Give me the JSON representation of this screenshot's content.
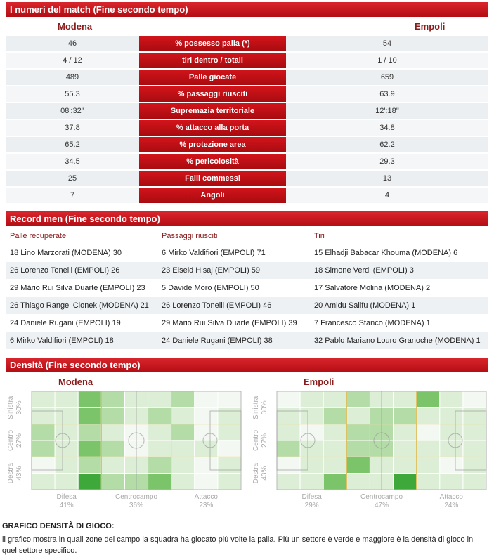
{
  "stats": {
    "title": "I numeri del match (Fine secondo tempo)",
    "home": "Modena",
    "away": "Empoli",
    "rows": [
      [
        "46",
        "% possesso palla (*)",
        "54"
      ],
      [
        "4 / 12",
        "tiri dentro / totali",
        "1 / 10"
      ],
      [
        "489",
        "Palle giocate",
        "659"
      ],
      [
        "55.3",
        "% passaggi riusciti",
        "63.9"
      ],
      [
        "08':32''",
        "Supremazia territoriale",
        "12':18''"
      ],
      [
        "37.8",
        "% attacco alla porta",
        "34.8"
      ],
      [
        "65.2",
        "% protezione area",
        "62.2"
      ],
      [
        "34.5",
        "% pericolosità",
        "29.3"
      ],
      [
        "25",
        "Falli commessi",
        "13"
      ],
      [
        "7",
        "Angoli",
        "4"
      ]
    ]
  },
  "records": {
    "title": "Record men (Fine secondo tempo)",
    "columns": [
      {
        "header": "Palle recuperate",
        "items": [
          "18 Lino Marzorati (MODENA) 30",
          "26 Lorenzo Tonelli (EMPOLI) 26",
          "29 Mário Rui Silva Duarte (EMPOLI) 23",
          "26 Thiago Rangel Cionek (MODENA) 21",
          "24 Daniele Rugani (EMPOLI) 19",
          "6 Mirko Valdifiori (EMPOLI) 18"
        ]
      },
      {
        "header": "Passaggi riusciti",
        "items": [
          "6 Mirko Valdifiori (EMPOLI) 71",
          "23 Elseid Hisaj (EMPOLI) 59",
          "5 Davide Moro (EMPOLI) 50",
          "26 Lorenzo Tonelli (EMPOLI) 46",
          "29 Mário Rui Silva Duarte (EMPOLI) 39",
          "24 Daniele Rugani (EMPOLI) 38"
        ]
      },
      {
        "header": "Tiri",
        "items": [
          "15 Elhadji Babacar Khouma (MODENA) 6",
          "18 Simone Verdi (EMPOLI) 3",
          "17 Salvatore Molina (MODENA) 2",
          "20 Amidu Salifu (MODENA) 1",
          "7 Francesco Stanco (MODENA) 1",
          "32 Pablo Mariano Louro Granoche (MODENA) 1"
        ]
      }
    ]
  },
  "density": {
    "title": "Densità (Fine secondo tempo)",
    "teams": [
      {
        "name": "Modena",
        "rows": [
          {
            "name": "Sinistra",
            "share": "30%"
          },
          {
            "name": "Centro",
            "share": "27%"
          },
          {
            "name": "Destra",
            "share": "43%"
          }
        ],
        "zones": [
          {
            "name": "Difesa",
            "share": "41%"
          },
          {
            "name": "Centrocampo",
            "share": "36%"
          },
          {
            "name": "Attacco",
            "share": "23%"
          }
        ],
        "cells": [
          [
            1,
            1,
            3,
            2,
            1,
            1,
            2,
            0,
            0
          ],
          [
            1,
            1,
            3,
            2,
            1,
            2,
            1,
            0,
            1
          ],
          [
            2,
            1,
            2,
            1,
            0,
            1,
            2,
            0,
            1
          ],
          [
            2,
            1,
            3,
            2,
            0,
            1,
            1,
            1,
            0
          ],
          [
            0,
            1,
            2,
            1,
            1,
            2,
            1,
            0,
            1
          ],
          [
            1,
            1,
            4,
            2,
            2,
            3,
            1,
            0,
            1
          ]
        ]
      },
      {
        "name": "Empoli",
        "rows": [
          {
            "name": "Sinistra",
            "share": "30%"
          },
          {
            "name": "Centro",
            "share": "27%"
          },
          {
            "name": "Destra",
            "share": "43%"
          }
        ],
        "zones": [
          {
            "name": "Difesa",
            "share": "29%"
          },
          {
            "name": "Centrocampo",
            "share": "47%"
          },
          {
            "name": "Attacco",
            "share": "24%"
          }
        ],
        "cells": [
          [
            0,
            1,
            1,
            2,
            1,
            1,
            3,
            1,
            0
          ],
          [
            1,
            1,
            2,
            1,
            2,
            2,
            1,
            1,
            1
          ],
          [
            1,
            0,
            1,
            2,
            2,
            1,
            0,
            1,
            1
          ],
          [
            2,
            1,
            1,
            2,
            2,
            1,
            1,
            1,
            1
          ],
          [
            0,
            1,
            1,
            3,
            1,
            1,
            1,
            0,
            1
          ],
          [
            1,
            1,
            3,
            1,
            1,
            4,
            1,
            1,
            1
          ]
        ]
      }
    ]
  },
  "footer": {
    "heading": "GRAFICO DENSITÀ DI GIOCO:",
    "text": "il grafico mostra in quali zone del campo la squadra ha giocato più volte la palla. Più un settore è verde e maggiore è la densità di gioco in quel settore specifico."
  }
}
